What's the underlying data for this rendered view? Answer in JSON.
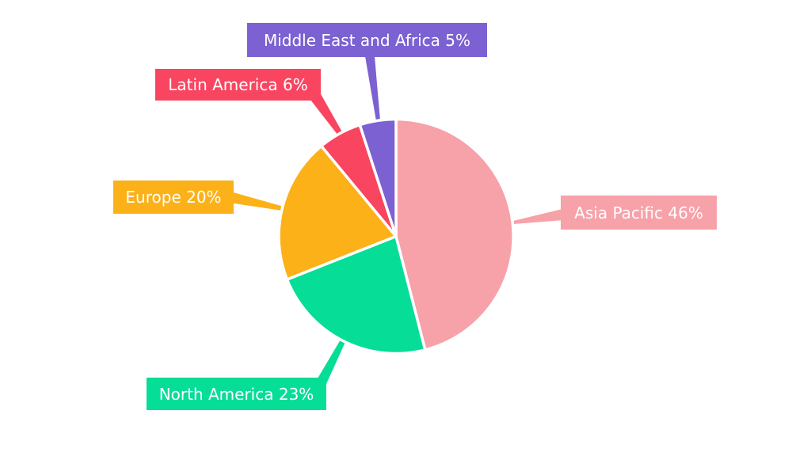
{
  "chart_data": {
    "type": "pie",
    "background": "#ffffff",
    "start_angle_deg": 0,
    "direction": "clockwise",
    "legend_position": "callout-labels",
    "label_text_color": "#ffffff",
    "separator_color": "#ffffff",
    "categories": [
      "Asia Pacific",
      "North America",
      "Europe",
      "Latin America",
      "Middle East and Africa"
    ],
    "values": [
      46,
      23,
      20,
      6,
      5
    ],
    "unit": "%",
    "slices": [
      {
        "id": "asia-pacific",
        "label": "Asia Pacific",
        "value": 46,
        "color": "#F7A1A9",
        "display": "Asia Pacific 46%"
      },
      {
        "id": "north-america",
        "label": "North America",
        "value": 23,
        "color": "#06DD96",
        "display": "North America 23%"
      },
      {
        "id": "europe",
        "label": "Europe",
        "value": 20,
        "color": "#FCB118",
        "display": "Europe 20%"
      },
      {
        "id": "latin-america",
        "label": "Latin America",
        "value": 6,
        "color": "#F94560",
        "display": "Latin America 6%"
      },
      {
        "id": "middle-east-and-africa",
        "label": "Middle East and Africa",
        "value": 5,
        "color": "#7B61D1",
        "display": "Middle East and Africa 5%"
      }
    ]
  }
}
